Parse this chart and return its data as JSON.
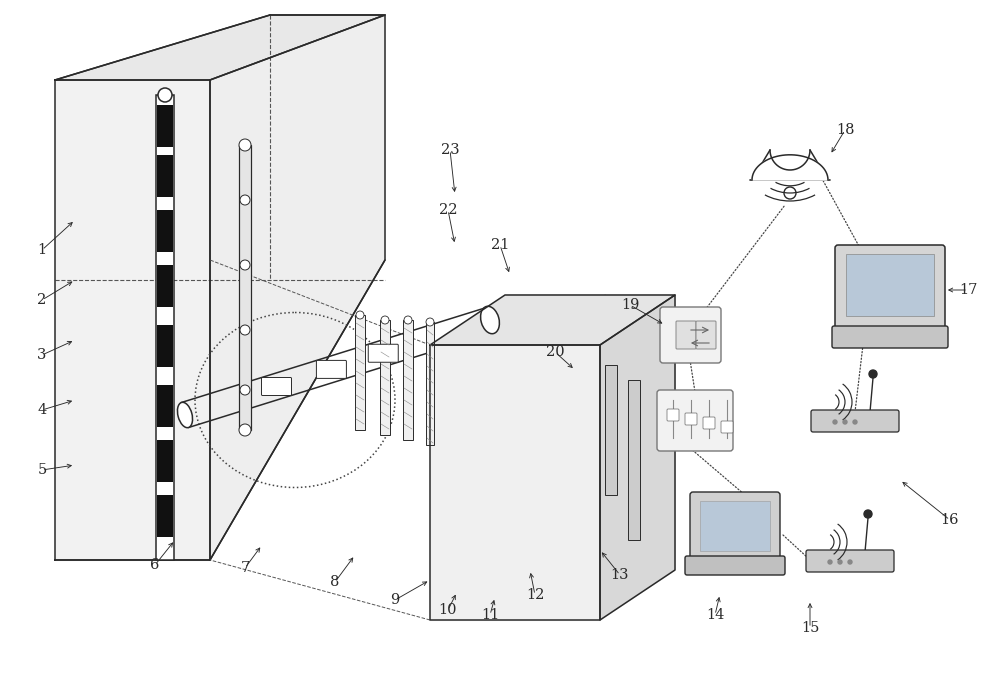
{
  "bg_color": "#ffffff",
  "lc": "#2a2a2a",
  "lw": 1.1,
  "fig_w": 10.0,
  "fig_h": 6.91,
  "label_fs": 10.5
}
